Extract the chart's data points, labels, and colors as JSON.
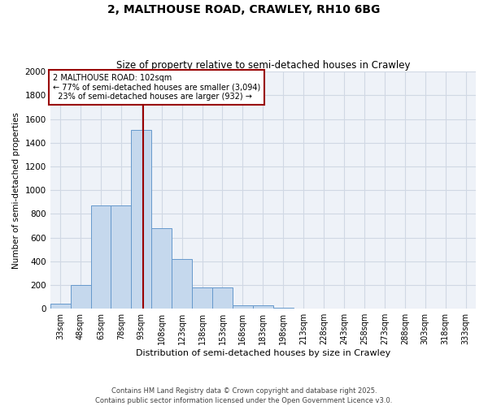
{
  "title_line1": "2, MALTHOUSE ROAD, CRAWLEY, RH10 6BG",
  "title_line2": "Size of property relative to semi-detached houses in Crawley",
  "xlabel": "Distribution of semi-detached houses by size in Crawley",
  "ylabel": "Number of semi-detached properties",
  "footer": "Contains HM Land Registry data © Crown copyright and database right 2025.\nContains public sector information licensed under the Open Government Licence v3.0.",
  "bin_labels": [
    "33sqm",
    "48sqm",
    "63sqm",
    "78sqm",
    "93sqm",
    "108sqm",
    "123sqm",
    "138sqm",
    "153sqm",
    "168sqm",
    "183sqm",
    "198sqm",
    "213sqm",
    "228sqm",
    "243sqm",
    "258sqm",
    "273sqm",
    "288sqm",
    "303sqm",
    "318sqm",
    "333sqm"
  ],
  "bar_values": [
    40,
    200,
    870,
    870,
    1510,
    680,
    420,
    180,
    180,
    30,
    30,
    5,
    0,
    0,
    0,
    0,
    0,
    0,
    0,
    0,
    0
  ],
  "bin_left_edges": [
    33,
    48,
    63,
    78,
    93,
    108,
    123,
    138,
    153,
    168,
    183,
    198,
    213,
    228,
    243,
    258,
    273,
    288,
    303,
    318,
    333
  ],
  "bin_width": 15,
  "property_size": 102,
  "property_label": "2 MALTHOUSE ROAD: 102sqm",
  "pct_smaller": 77,
  "pct_larger": 23,
  "n_smaller": 3094,
  "n_larger": 932,
  "bar_color": "#c5d8ed",
  "bar_edge_color": "#6699cc",
  "vline_color": "#990000",
  "annotation_box_color": "#990000",
  "grid_color": "#d0d8e4",
  "bg_color": "#eef2f8",
  "ylim": [
    0,
    2000
  ],
  "yticks": [
    0,
    200,
    400,
    600,
    800,
    1000,
    1200,
    1400,
    1600,
    1800,
    2000
  ],
  "figwidth": 6.0,
  "figheight": 5.0,
  "dpi": 100
}
